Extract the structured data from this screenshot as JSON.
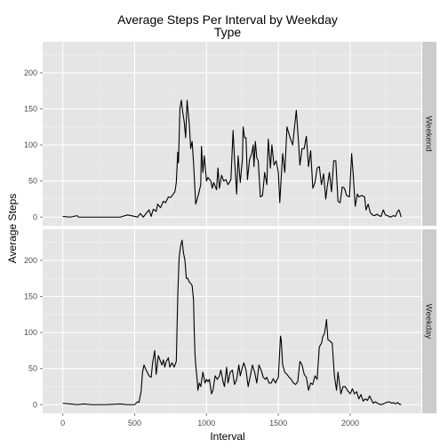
{
  "chart_data": {
    "type": "line",
    "title": "Average Steps Per Interval by Weekday\nType",
    "xlabel": "Interval",
    "ylabel": "Average Steps",
    "xlim": [
      -140,
      2495
    ],
    "ylim": [
      -12,
      243
    ],
    "x_ticks": [
      0,
      500,
      1000,
      1500,
      2000
    ],
    "y_ticks": [
      0,
      50,
      100,
      150,
      200
    ],
    "grid": true,
    "facets": "rows",
    "colors": {
      "panel_bg": "#e5e5e5",
      "strip_bg": "#cccccc",
      "grid_major": "#ffffff",
      "grid_minor": "#f2f2f2",
      "line": "#000000"
    },
    "series": [
      {
        "name": "Weekend",
        "points": [
          [
            0,
            1
          ],
          [
            50,
            0
          ],
          [
            100,
            2
          ],
          [
            110,
            0
          ],
          [
            200,
            0
          ],
          [
            300,
            0
          ],
          [
            400,
            0
          ],
          [
            450,
            3
          ],
          [
            500,
            1
          ],
          [
            520,
            0
          ],
          [
            540,
            5
          ],
          [
            560,
            0
          ],
          [
            600,
            10
          ],
          [
            615,
            1
          ],
          [
            630,
            11
          ],
          [
            650,
            8
          ],
          [
            660,
            18
          ],
          [
            680,
            13
          ],
          [
            700,
            22
          ],
          [
            715,
            20
          ],
          [
            735,
            28
          ],
          [
            750,
            27
          ],
          [
            765,
            31
          ],
          [
            780,
            35
          ],
          [
            790,
            48
          ],
          [
            800,
            90
          ],
          [
            805,
            75
          ],
          [
            815,
            150
          ],
          [
            825,
            162
          ],
          [
            835,
            145
          ],
          [
            845,
            132
          ],
          [
            855,
            110
          ],
          [
            865,
            162
          ],
          [
            870,
            150
          ],
          [
            880,
            130
          ],
          [
            890,
            95
          ],
          [
            900,
            105
          ],
          [
            910,
            75
          ],
          [
            925,
            18
          ],
          [
            945,
            32
          ],
          [
            960,
            45
          ],
          [
            965,
            98
          ],
          [
            975,
            62
          ],
          [
            985,
            85
          ],
          [
            1000,
            50
          ],
          [
            1010,
            55
          ],
          [
            1030,
            50
          ],
          [
            1040,
            40
          ],
          [
            1050,
            48
          ],
          [
            1070,
            38
          ],
          [
            1080,
            68
          ],
          [
            1090,
            40
          ],
          [
            1105,
            58
          ],
          [
            1120,
            50
          ],
          [
            1135,
            52
          ],
          [
            1150,
            45
          ],
          [
            1170,
            52
          ],
          [
            1185,
            120
          ],
          [
            1195,
            80
          ],
          [
            1210,
            32
          ],
          [
            1220,
            85
          ],
          [
            1235,
            48
          ],
          [
            1250,
            80
          ],
          [
            1255,
            125
          ],
          [
            1265,
            110
          ],
          [
            1275,
            110
          ],
          [
            1285,
            52
          ],
          [
            1300,
            80
          ],
          [
            1315,
            88
          ],
          [
            1325,
            100
          ],
          [
            1330,
            70
          ],
          [
            1340,
            105
          ],
          [
            1350,
            82
          ],
          [
            1360,
            78
          ],
          [
            1375,
            28
          ],
          [
            1390,
            30
          ],
          [
            1405,
            62
          ],
          [
            1420,
            45
          ],
          [
            1430,
            108
          ],
          [
            1445,
            68
          ],
          [
            1455,
            100
          ],
          [
            1470,
            72
          ],
          [
            1485,
            78
          ],
          [
            1500,
            62
          ],
          [
            1510,
            20
          ],
          [
            1520,
            55
          ],
          [
            1530,
            88
          ],
          [
            1545,
            62
          ],
          [
            1560,
            125
          ],
          [
            1570,
            118
          ],
          [
            1585,
            108
          ],
          [
            1600,
            100
          ],
          [
            1610,
            120
          ],
          [
            1625,
            148
          ],
          [
            1640,
            105
          ],
          [
            1650,
            72
          ],
          [
            1665,
            95
          ],
          [
            1680,
            95
          ],
          [
            1695,
            112
          ],
          [
            1710,
            70
          ],
          [
            1725,
            92
          ],
          [
            1740,
            40
          ],
          [
            1755,
            48
          ],
          [
            1770,
            68
          ],
          [
            1785,
            70
          ],
          [
            1800,
            45
          ],
          [
            1815,
            60
          ],
          [
            1830,
            25
          ],
          [
            1840,
            42
          ],
          [
            1855,
            62
          ],
          [
            1870,
            35
          ],
          [
            1885,
            78
          ],
          [
            1900,
            78
          ],
          [
            1915,
            22
          ],
          [
            1930,
            20
          ],
          [
            1945,
            42
          ],
          [
            1960,
            40
          ],
          [
            1975,
            30
          ],
          [
            1995,
            28
          ],
          [
            2010,
            88
          ],
          [
            2020,
            62
          ],
          [
            2035,
            15
          ],
          [
            2050,
            32
          ],
          [
            2060,
            28
          ],
          [
            2080,
            30
          ],
          [
            2100,
            28
          ],
          [
            2110,
            10
          ],
          [
            2125,
            18
          ],
          [
            2140,
            6
          ],
          [
            2155,
            3
          ],
          [
            2170,
            2
          ],
          [
            2185,
            4
          ],
          [
            2200,
            2
          ],
          [
            2215,
            1
          ],
          [
            2230,
            10
          ],
          [
            2245,
            3
          ],
          [
            2260,
            2
          ],
          [
            2280,
            0
          ],
          [
            2300,
            2
          ],
          [
            2315,
            1
          ],
          [
            2330,
            8
          ],
          [
            2340,
            10
          ],
          [
            2355,
            0
          ]
        ]
      },
      {
        "name": "Weekday",
        "points": [
          [
            0,
            2
          ],
          [
            50,
            1
          ],
          [
            100,
            0
          ],
          [
            150,
            1
          ],
          [
            200,
            0
          ],
          [
            300,
            0
          ],
          [
            400,
            1
          ],
          [
            450,
            0
          ],
          [
            500,
            0
          ],
          [
            520,
            4
          ],
          [
            530,
            3
          ],
          [
            545,
            18
          ],
          [
            555,
            45
          ],
          [
            565,
            55
          ],
          [
            580,
            48
          ],
          [
            600,
            40
          ],
          [
            615,
            38
          ],
          [
            625,
            58
          ],
          [
            640,
            75
          ],
          [
            650,
            42
          ],
          [
            665,
            68
          ],
          [
            680,
            60
          ],
          [
            690,
            55
          ],
          [
            700,
            62
          ],
          [
            710,
            52
          ],
          [
            720,
            60
          ],
          [
            735,
            65
          ],
          [
            745,
            52
          ],
          [
            760,
            58
          ],
          [
            775,
            52
          ],
          [
            790,
            60
          ],
          [
            800,
            150
          ],
          [
            805,
            180
          ],
          [
            810,
            205
          ],
          [
            820,
            220
          ],
          [
            830,
            228
          ],
          [
            840,
            210
          ],
          [
            850,
            200
          ],
          [
            860,
            175
          ],
          [
            870,
            175
          ],
          [
            880,
            170
          ],
          [
            890,
            168
          ],
          [
            900,
            165
          ],
          [
            910,
            145
          ],
          [
            915,
            100
          ],
          [
            920,
            70
          ],
          [
            925,
            55
          ],
          [
            935,
            35
          ],
          [
            940,
            20
          ],
          [
            950,
            30
          ],
          [
            960,
            25
          ],
          [
            975,
            45
          ],
          [
            990,
            30
          ],
          [
            1000,
            35
          ],
          [
            1010,
            32
          ],
          [
            1020,
            35
          ],
          [
            1035,
            15
          ],
          [
            1045,
            20
          ],
          [
            1060,
            40
          ],
          [
            1075,
            35
          ],
          [
            1090,
            40
          ],
          [
            1100,
            48
          ],
          [
            1115,
            32
          ],
          [
            1125,
            25
          ],
          [
            1140,
            52
          ],
          [
            1150,
            30
          ],
          [
            1165,
            45
          ],
          [
            1180,
            48
          ],
          [
            1195,
            28
          ],
          [
            1210,
            35
          ],
          [
            1225,
            55
          ],
          [
            1235,
            40
          ],
          [
            1250,
            52
          ],
          [
            1260,
            58
          ],
          [
            1275,
            48
          ],
          [
            1290,
            25
          ],
          [
            1305,
            40
          ],
          [
            1320,
            55
          ],
          [
            1335,
            45
          ],
          [
            1350,
            30
          ],
          [
            1365,
            55
          ],
          [
            1380,
            48
          ],
          [
            1395,
            38
          ],
          [
            1410,
            35
          ],
          [
            1420,
            38
          ],
          [
            1435,
            30
          ],
          [
            1450,
            30
          ],
          [
            1465,
            36
          ],
          [
            1480,
            30
          ],
          [
            1500,
            38
          ],
          [
            1515,
            95
          ],
          [
            1520,
            90
          ],
          [
            1530,
            55
          ],
          [
            1545,
            45
          ],
          [
            1560,
            42
          ],
          [
            1575,
            38
          ],
          [
            1590,
            35
          ],
          [
            1605,
            30
          ],
          [
            1620,
            28
          ],
          [
            1635,
            32
          ],
          [
            1650,
            60
          ],
          [
            1665,
            55
          ],
          [
            1680,
            42
          ],
          [
            1695,
            38
          ],
          [
            1710,
            20
          ],
          [
            1725,
            30
          ],
          [
            1740,
            28
          ],
          [
            1755,
            40
          ],
          [
            1770,
            35
          ],
          [
            1785,
            80
          ],
          [
            1800,
            85
          ],
          [
            1810,
            95
          ],
          [
            1820,
            98
          ],
          [
            1830,
            110
          ],
          [
            1835,
            118
          ],
          [
            1845,
            90
          ],
          [
            1860,
            88
          ],
          [
            1875,
            85
          ],
          [
            1890,
            40
          ],
          [
            1905,
            20
          ],
          [
            1915,
            45
          ],
          [
            1925,
            30
          ],
          [
            1935,
            15
          ],
          [
            1950,
            25
          ],
          [
            1965,
            25
          ],
          [
            1980,
            20
          ],
          [
            2000,
            15
          ],
          [
            2015,
            22
          ],
          [
            2030,
            15
          ],
          [
            2045,
            18
          ],
          [
            2060,
            8
          ],
          [
            2075,
            14
          ],
          [
            2090,
            5
          ],
          [
            2105,
            8
          ],
          [
            2120,
            6
          ],
          [
            2135,
            12
          ],
          [
            2150,
            6
          ],
          [
            2160,
            2
          ],
          [
            2175,
            4
          ],
          [
            2190,
            2
          ],
          [
            2210,
            0
          ],
          [
            2230,
            1
          ],
          [
            2250,
            3
          ],
          [
            2270,
            4
          ],
          [
            2290,
            2
          ],
          [
            2300,
            3
          ],
          [
            2315,
            1
          ],
          [
            2330,
            3
          ],
          [
            2340,
            1
          ],
          [
            2355,
            0
          ]
        ]
      }
    ]
  }
}
